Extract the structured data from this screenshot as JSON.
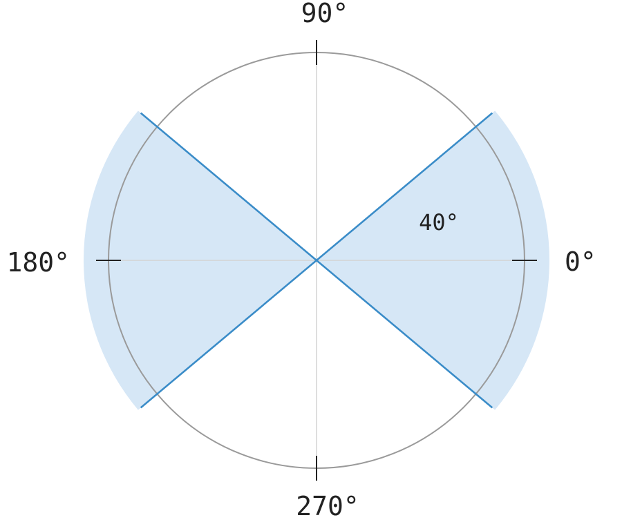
{
  "diagram": {
    "axis_labels": {
      "right": "0°",
      "top": "90°",
      "left": "180°",
      "bottom": "270°"
    },
    "sector_label": "40°",
    "half_angle_deg": 40,
    "colors": {
      "sector_fill": "#d6e7f6",
      "boundary_line": "#3a8cc8",
      "circle": "#9a9a9a",
      "axis": "#d4d4d4",
      "tick": "#222222"
    }
  }
}
